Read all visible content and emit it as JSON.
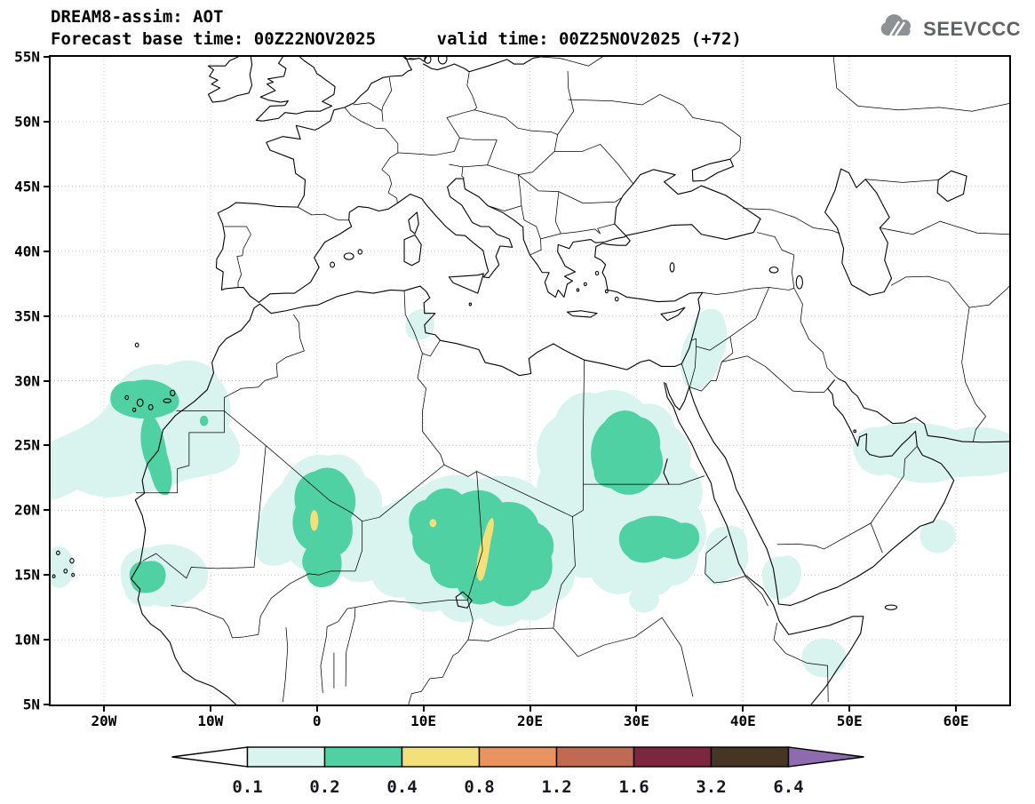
{
  "header": {
    "title": "DREAM8-assim: AOT",
    "subtitle": "Forecast base time: 00Z22NOV2025      valid time: 00Z25NOV2025 (+72)"
  },
  "logo": {
    "text": "SEEVCCC"
  },
  "map": {
    "lat_ticks": [
      "55N",
      "50N",
      "45N",
      "40N",
      "35N",
      "30N",
      "25N",
      "20N",
      "15N",
      "10N",
      "5N"
    ],
    "lon_ticks": [
      "20W",
      "10W",
      "0",
      "10E",
      "20E",
      "30E",
      "40E",
      "50E",
      "60E"
    ]
  },
  "colorbar": {
    "labels": [
      "0.1",
      "0.2",
      "0.4",
      "0.8",
      "1.2",
      "1.6",
      "3.2",
      "6.4"
    ],
    "arrow_left_color": "#ffffff",
    "segment_colors": [
      "#d9f3ef",
      "#4fd1a3",
      "#f2e17b",
      "#ea9260",
      "#c06a54",
      "#7c2640",
      "#463524"
    ],
    "arrow_right_color": "#8e6bae"
  }
}
